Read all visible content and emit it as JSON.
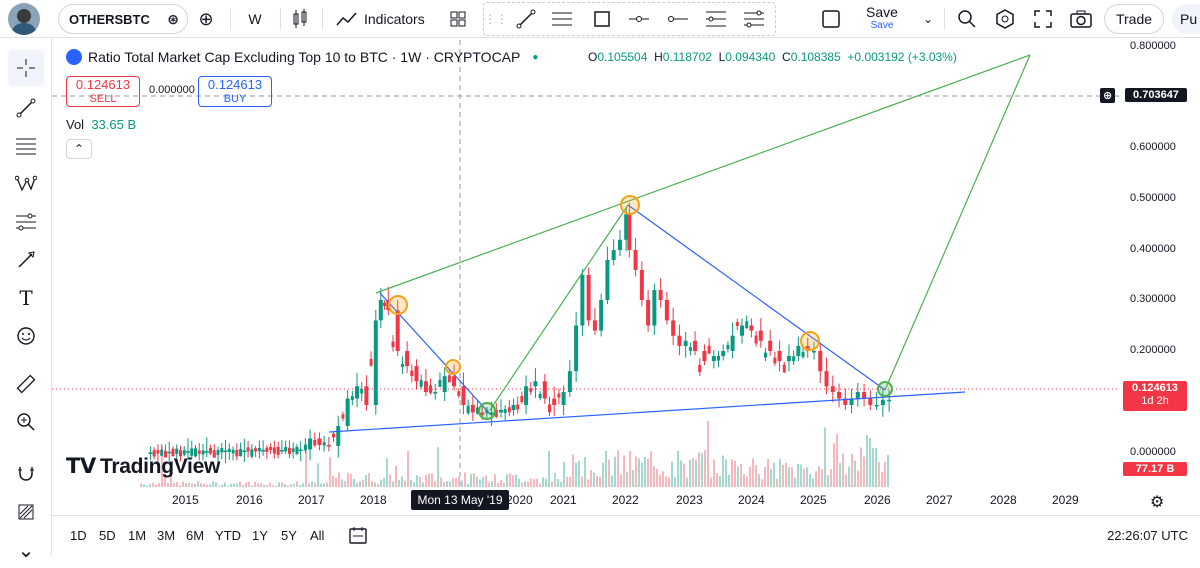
{
  "toolbar": {
    "symbol": "OTHERSBTC",
    "interval": "W",
    "indicators_label": "Indicators",
    "save_label": "Save",
    "save_sub": "Save",
    "trade_label": "Trade",
    "publish_label": "Pu"
  },
  "legend": {
    "title": "Ratio Total Market Cap Excluding Top 10 to BTC · 1W · CRYPTOCAP",
    "open_k": "O",
    "open": "0.105504",
    "high_k": "H",
    "high": "0.118702",
    "low_k": "L",
    "low": "0.094340",
    "close_k": "C",
    "close": "0.108385",
    "change": "+0.003192 (+3.03%)",
    "sell_price": "0.124613",
    "sell_label": "SELL",
    "spread": "0.000000",
    "buy_price": "0.124613",
    "buy_label": "BUY",
    "vol_label": "Vol",
    "vol_value": "33.65 B",
    "collapse_glyph": "⌃"
  },
  "watermark": "TradingView",
  "crosshair": {
    "date_label": "Mon 13 May '19",
    "price_label": "0.703647"
  },
  "price_scale": {
    "labels": [
      "0.800000",
      "0.600000",
      "0.500000",
      "0.400000",
      "0.300000",
      "0.200000",
      "0.000000"
    ],
    "current_price": "0.124613",
    "countdown": "1d 2h",
    "volume_tag": "77.17 B"
  },
  "time_scale": {
    "labels": [
      "2015",
      "2016",
      "2017",
      "2018",
      "2020",
      "2021",
      "2022",
      "2023",
      "2024",
      "2025",
      "2026",
      "2027",
      "2028",
      "2029"
    ]
  },
  "bottom": {
    "ranges": [
      "1D",
      "5D",
      "1M",
      "3M",
      "6M",
      "YTD",
      "1Y",
      "5Y",
      "All"
    ],
    "clock": "22:26:07 UTC"
  },
  "colors": {
    "up": "#089981",
    "down": "#f23645",
    "accent": "#2962ff",
    "channel_line": "#4caf50",
    "trend_line": "#2962ff",
    "marker_orange": "#f7a21b",
    "marker_green": "#4caf50"
  },
  "chart_data": {
    "type": "candlestick",
    "interval": "1W",
    "y_scale": "log",
    "ylim": [
      0.015,
      0.8
    ],
    "xlim": [
      2014.0,
      2029.5
    ],
    "series": [
      {
        "x": [
          2014.4,
          2014.7,
          2015.0,
          2015.3,
          2015.6,
          2015.9,
          2016.2,
          2016.5,
          2016.8,
          2016.95,
          2017.1,
          2017.25,
          2017.4,
          2017.55,
          2017.7,
          2017.85,
          2018.0,
          2018.08,
          2018.2,
          2018.35,
          2018.5,
          2018.65,
          2018.8,
          2018.95,
          2019.1,
          2019.25,
          2019.4,
          2019.55,
          2019.7,
          2019.85,
          2020.0,
          2020.2,
          2020.4,
          2020.55,
          2020.7,
          2020.85,
          2021.0,
          2021.1,
          2021.2,
          2021.3,
          2021.4,
          2021.5,
          2021.6,
          2021.7,
          2021.8,
          2021.9,
          2022.0,
          2022.05,
          2022.15,
          2022.25,
          2022.35,
          2022.45,
          2022.55,
          2022.65,
          2022.75,
          2022.85,
          2022.95,
          2023.1,
          2023.25,
          2023.4,
          2023.55,
          2023.7,
          2023.85,
          2024.0,
          2024.15,
          2024.3,
          2024.45,
          2024.6,
          2024.75,
          2024.9,
          2025.0,
          2025.1,
          2025.2,
          2025.3,
          2025.4,
          2025.5,
          2025.6,
          2025.7,
          2025.8,
          2025.9,
          2026.0,
          2026.1,
          2026.2
        ],
        "close": [
          0.016,
          0.017,
          0.018,
          0.018,
          0.019,
          0.019,
          0.02,
          0.02,
          0.021,
          0.04,
          0.03,
          0.028,
          0.06,
          0.11,
          0.13,
          0.1,
          0.26,
          0.3,
          0.28,
          0.2,
          0.17,
          0.14,
          0.12,
          0.12,
          0.15,
          0.13,
          0.1,
          0.085,
          0.08,
          0.085,
          0.09,
          0.1,
          0.13,
          0.14,
          0.11,
          0.1,
          0.12,
          0.16,
          0.25,
          0.35,
          0.26,
          0.24,
          0.3,
          0.38,
          0.4,
          0.42,
          0.47,
          0.4,
          0.36,
          0.3,
          0.25,
          0.32,
          0.3,
          0.26,
          0.23,
          0.21,
          0.22,
          0.2,
          0.18,
          0.19,
          0.2,
          0.23,
          0.25,
          0.24,
          0.22,
          0.2,
          0.18,
          0.19,
          0.21,
          0.2,
          0.2,
          0.16,
          0.13,
          0.12,
          0.11,
          0.1,
          0.11,
          0.12,
          0.11,
          0.1,
          0.1,
          0.108,
          0.108
        ]
      }
    ],
    "volume_note": "Vol",
    "annotations": {
      "lines": [
        "channel top",
        "channel bottom",
        "descending trend",
        "support",
        "projection"
      ],
      "markers": [
        "2018.3 high",
        "2019.2 break",
        "2019.5 low",
        "2022.0 high",
        "2024.9 touch",
        "2026.0 current"
      ]
    },
    "crosshair_price": 0.703647,
    "last_price": 0.124613
  }
}
